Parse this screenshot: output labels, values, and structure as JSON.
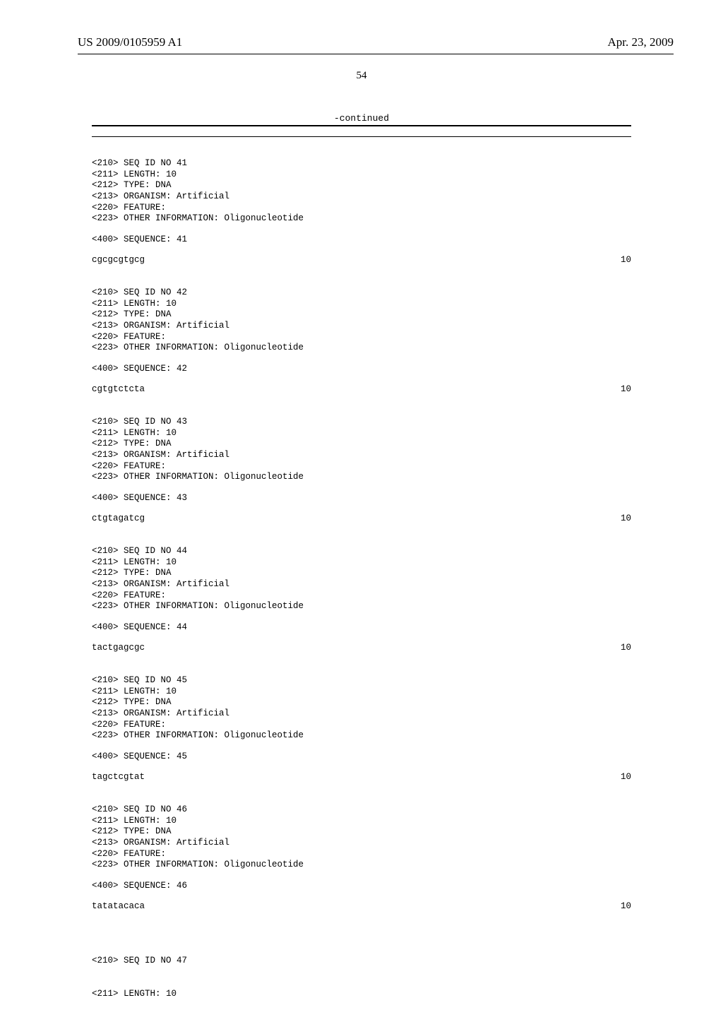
{
  "header": {
    "publication_number": "US 2009/0105959 A1",
    "publication_date": "Apr. 23, 2009"
  },
  "page_number": "54",
  "continued_label": "-continued",
  "sequences": [
    {
      "id": "41",
      "id_line": "<210> SEQ ID NO 41",
      "length_line": "<211> LENGTH: 10",
      "type_line": "<212> TYPE: DNA",
      "organism_line": "<213> ORGANISM: Artificial",
      "feature_line": "<220> FEATURE:",
      "other_line": "<223> OTHER INFORMATION: Oligonucleotide",
      "seq400_line": "<400> SEQUENCE: 41",
      "sequence": "cgcgcgtgcg",
      "len": "10"
    },
    {
      "id": "42",
      "id_line": "<210> SEQ ID NO 42",
      "length_line": "<211> LENGTH: 10",
      "type_line": "<212> TYPE: DNA",
      "organism_line": "<213> ORGANISM: Artificial",
      "feature_line": "<220> FEATURE:",
      "other_line": "<223> OTHER INFORMATION: Oligonucleotide",
      "seq400_line": "<400> SEQUENCE: 42",
      "sequence": "cgtgtctcta",
      "len": "10"
    },
    {
      "id": "43",
      "id_line": "<210> SEQ ID NO 43",
      "length_line": "<211> LENGTH: 10",
      "type_line": "<212> TYPE: DNA",
      "organism_line": "<213> ORGANISM: Artificial",
      "feature_line": "<220> FEATURE:",
      "other_line": "<223> OTHER INFORMATION: Oligonucleotide",
      "seq400_line": "<400> SEQUENCE: 43",
      "sequence": "ctgtagatcg",
      "len": "10"
    },
    {
      "id": "44",
      "id_line": "<210> SEQ ID NO 44",
      "length_line": "<211> LENGTH: 10",
      "type_line": "<212> TYPE: DNA",
      "organism_line": "<213> ORGANISM: Artificial",
      "feature_line": "<220> FEATURE:",
      "other_line": "<223> OTHER INFORMATION: Oligonucleotide",
      "seq400_line": "<400> SEQUENCE: 44",
      "sequence": "tactgagcgc",
      "len": "10"
    },
    {
      "id": "45",
      "id_line": "<210> SEQ ID NO 45",
      "length_line": "<211> LENGTH: 10",
      "type_line": "<212> TYPE: DNA",
      "organism_line": "<213> ORGANISM: Artificial",
      "feature_line": "<220> FEATURE:",
      "other_line": "<223> OTHER INFORMATION: Oligonucleotide",
      "seq400_line": "<400> SEQUENCE: 45",
      "sequence": "tagctcgtat",
      "len": "10"
    },
    {
      "id": "46",
      "id_line": "<210> SEQ ID NO 46",
      "length_line": "<211> LENGTH: 10",
      "type_line": "<212> TYPE: DNA",
      "organism_line": "<213> ORGANISM: Artificial",
      "feature_line": "<220> FEATURE:",
      "other_line": "<223> OTHER INFORMATION: Oligonucleotide",
      "seq400_line": "<400> SEQUENCE: 46",
      "sequence": "tatatacaca",
      "len": "10"
    }
  ],
  "trailing": {
    "id_line": "<210> SEQ ID NO 47",
    "length_line": "<211> LENGTH: 10"
  }
}
